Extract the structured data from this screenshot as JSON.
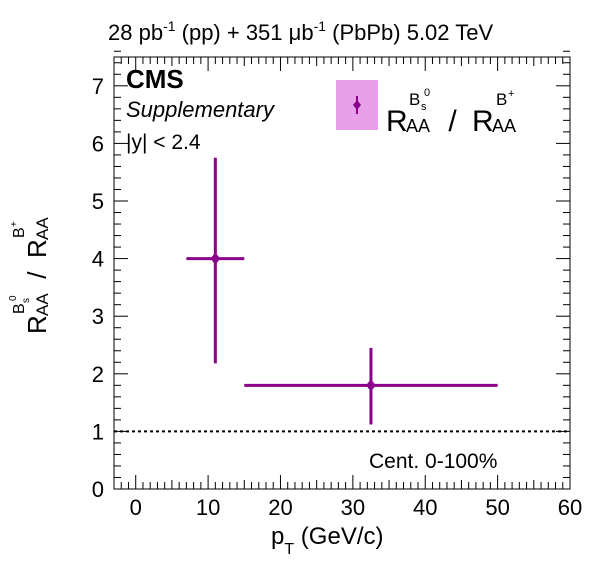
{
  "header": {
    "lumi_parts": [
      "28 pb",
      "-1",
      " (pp) + 351 μb",
      "-1",
      " (PbPb) 5.02 TeV"
    ]
  },
  "labels": {
    "experiment": "CMS",
    "subtitle": "Supplementary",
    "rapidity_cut": "|y| < 2.4",
    "centrality": "Cent. 0-100%"
  },
  "colors": {
    "marker": "#8b008b",
    "legend_fill": "#e8a0e8",
    "reference_line": "#000000"
  },
  "chart_data": {
    "type": "scatter",
    "xlabel": {
      "main": "p",
      "sub": "T",
      "rest": " (GeV/c)"
    },
    "ylabel": {
      "main": "R",
      "sub": "AA",
      "sup_main": "B",
      "sup_sub": "s",
      "sup_sup": "0",
      "sep": " / ",
      "main2": "R",
      "sub2": "AA",
      "sup2_main": "B",
      "sup2_sup": "+"
    },
    "legend": {
      "main": "R",
      "sub": "AA",
      "sup_main": "B",
      "sup_sub": "s",
      "sup_sup": "0",
      "sep": " / ",
      "main2": "R",
      "sub2": "AA",
      "sup2_main": "B",
      "sup2_sup": "+"
    },
    "xlim": [
      -3,
      60
    ],
    "ylim": [
      0,
      7.5
    ],
    "xticks": [
      0,
      10,
      20,
      30,
      40,
      50,
      60
    ],
    "yticks": [
      0,
      1,
      2,
      3,
      4,
      5,
      6,
      7
    ],
    "points": [
      {
        "x": 11,
        "y": 4.0,
        "xlow": 7,
        "xhigh": 15,
        "ylow": 2.18,
        "yhigh": 5.75
      },
      {
        "x": 32.5,
        "y": 1.8,
        "xlow": 15,
        "xhigh": 50,
        "ylow": 1.12,
        "yhigh": 2.45
      }
    ],
    "reference_y": 1
  }
}
